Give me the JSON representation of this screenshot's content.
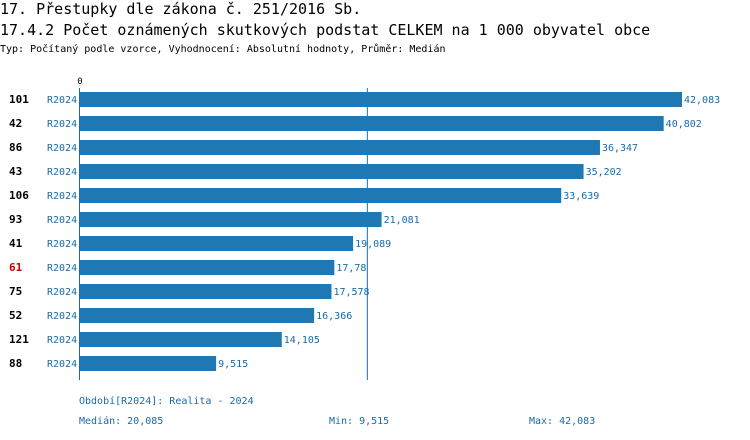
{
  "header": {
    "title": "17. Přestupky dle zákona č. 251/2016 Sb.",
    "subtitle": "17.4.2 Počet oznámených skutkových podstat CELKEM na 1 000 obyvatel obce",
    "type_line": "Typ: Počítaný podle vzorce, Vyhodnocení: Absolutní hodnoty, Průměr: Medián"
  },
  "colors": {
    "bar": "#1f77b4",
    "label_blue": "#1a6aa8",
    "highlight": "#cc0000",
    "axis": "#1a6aa8"
  },
  "chart_data": {
    "type": "bar",
    "orientation": "horizontal",
    "axis_zero_label": "0",
    "xlim": [
      0,
      42.083
    ],
    "median_line": 20.085,
    "categories": [
      "101",
      "42",
      "86",
      "43",
      "106",
      "93",
      "41",
      "61",
      "75",
      "52",
      "121",
      "88"
    ],
    "period_labels": [
      "R2024",
      "R2024",
      "R2024",
      "R2024",
      "R2024",
      "R2024",
      "R2024",
      "R2024",
      "R2024",
      "R2024",
      "R2024",
      "R2024"
    ],
    "values": [
      42.083,
      40.802,
      36.347,
      35.202,
      33.639,
      21.081,
      19.089,
      17.78,
      17.578,
      16.366,
      14.105,
      9.515
    ],
    "value_labels": [
      "42,083",
      "40,802",
      "36,347",
      "35,202",
      "33,639",
      "21,081",
      "19,089",
      "17,78",
      "17,578",
      "16,366",
      "14,105",
      "9,515"
    ],
    "highlighted_category": "61"
  },
  "footer": {
    "period": "Období[R2024]: Realita - 2024",
    "median": "Medián: 20,085",
    "min": "Min: 9,515",
    "max": "Max: 42,083"
  }
}
